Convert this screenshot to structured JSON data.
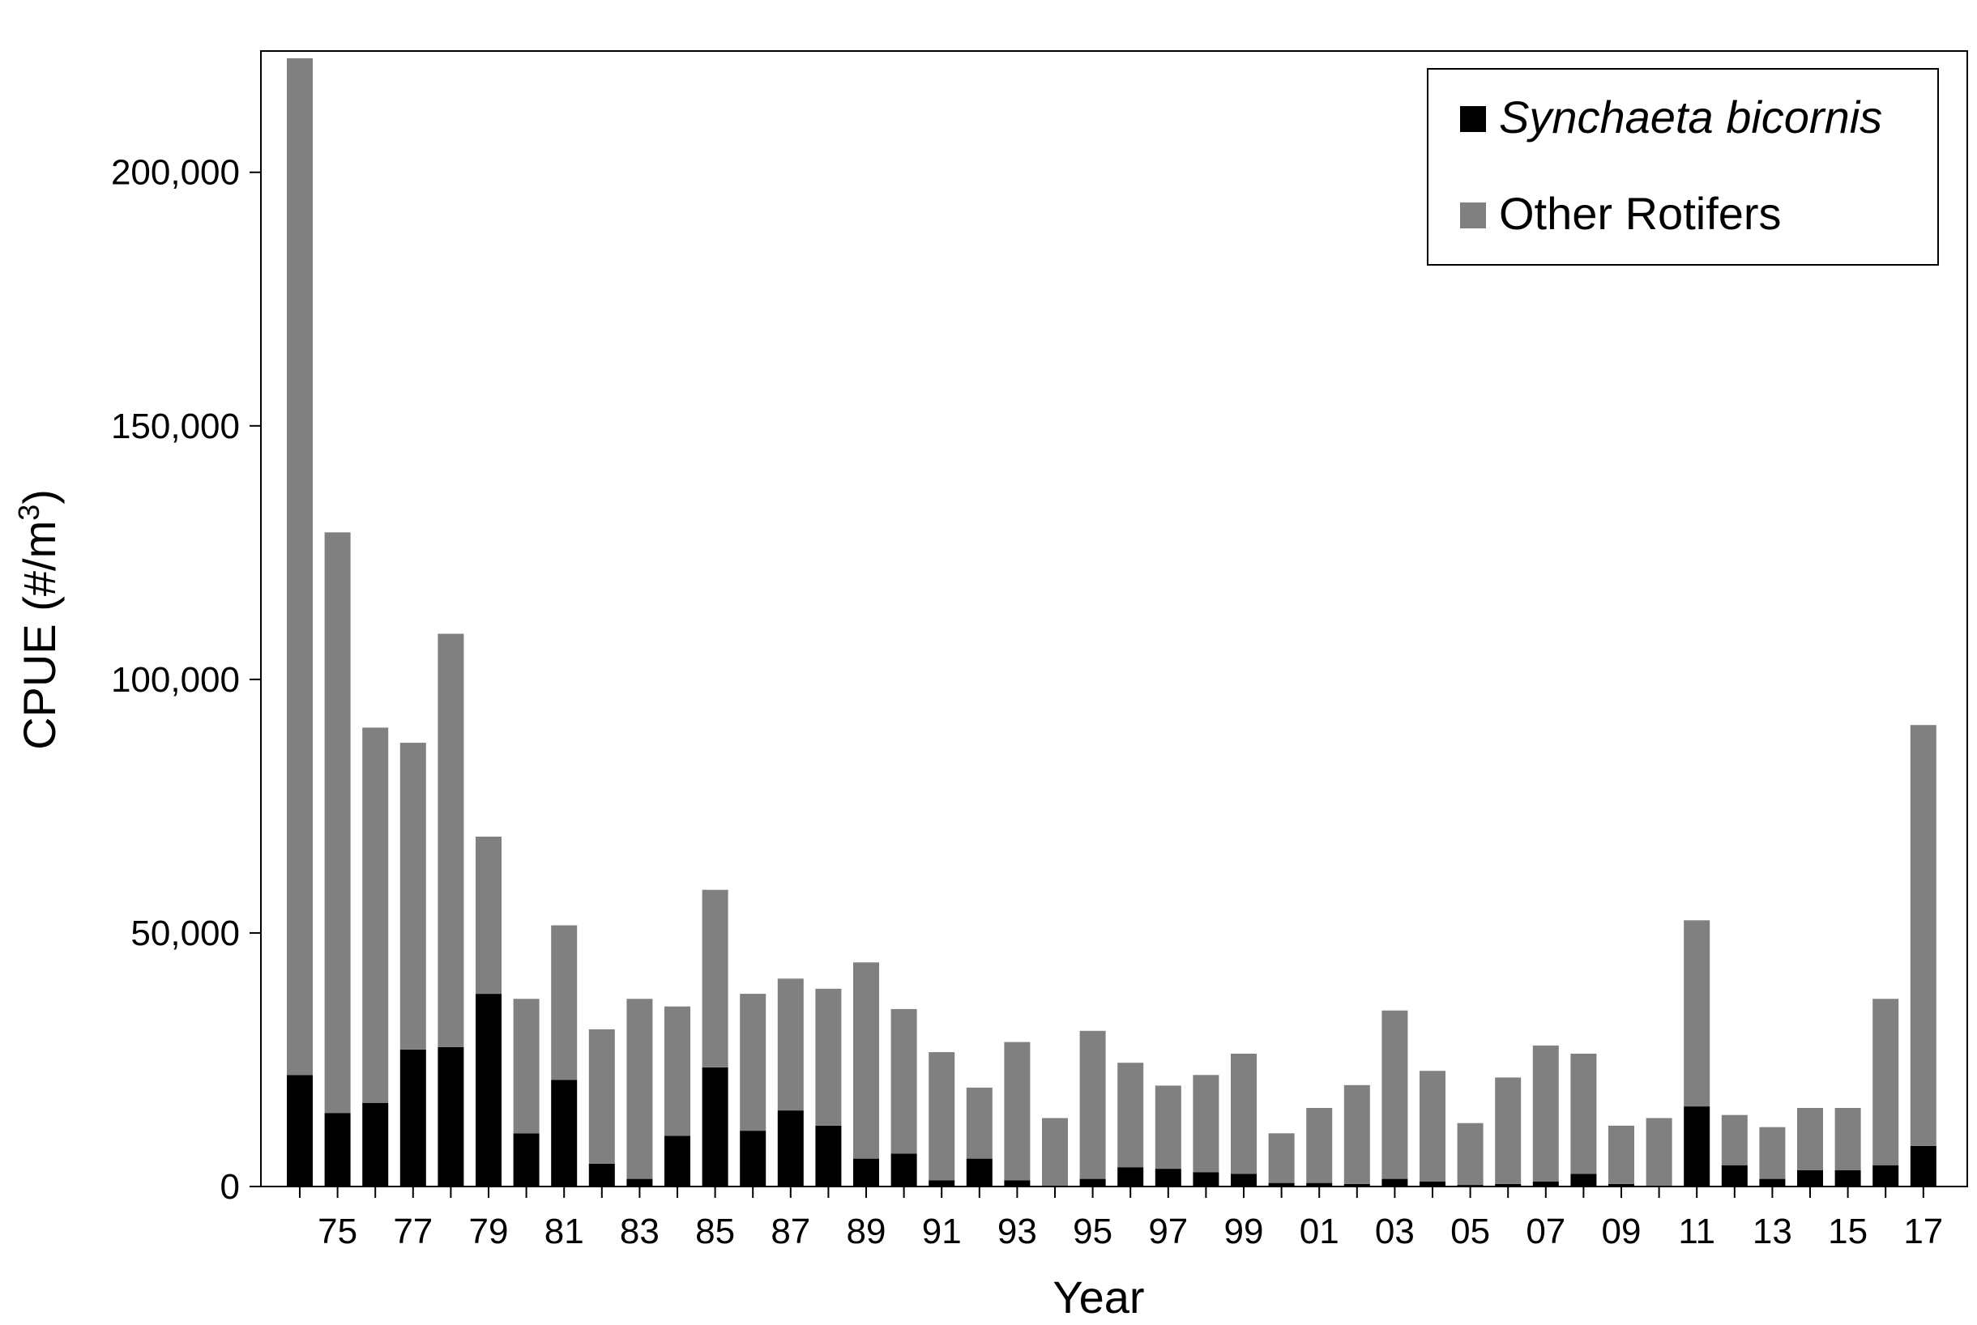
{
  "chart_data": {
    "type": "bar",
    "stacked": true,
    "xlabel": "Year",
    "ylabel_main": "CPUE (#/m",
    "ylabel_sup": "3",
    "ylabel_tail": ")",
    "ylim": [
      0,
      222000
    ],
    "y_ticks": [
      0,
      50000,
      100000,
      150000,
      200000
    ],
    "y_tick_labels": [
      "0",
      "50,000",
      "100,000",
      "150,000",
      "200,000"
    ],
    "categories": [
      "74",
      "75",
      "76",
      "77",
      "78",
      "79",
      "80",
      "81",
      "82",
      "83",
      "84",
      "85",
      "86",
      "87",
      "88",
      "89",
      "90",
      "91",
      "92",
      "93",
      "94",
      "95",
      "96",
      "97",
      "98",
      "99",
      "00",
      "01",
      "02",
      "03",
      "04",
      "05",
      "06",
      "07",
      "08",
      "09",
      "10",
      "11",
      "12",
      "13",
      "14",
      "15",
      "16",
      "17"
    ],
    "x_tick_labels_shown": [
      "75",
      "77",
      "79",
      "81",
      "83",
      "85",
      "87",
      "89",
      "91",
      "93",
      "95",
      "97",
      "99",
      "01",
      "03",
      "05",
      "07",
      "09",
      "11",
      "13",
      "15",
      "17"
    ],
    "series": [
      {
        "name": "Synchaeta bicornis",
        "color": "#000000",
        "values": [
          22000,
          14500,
          16500,
          27000,
          27500,
          38000,
          10500,
          21000,
          4500,
          1500,
          10000,
          23500,
          11000,
          15000,
          12000,
          5500,
          6500,
          1200,
          5500,
          1200,
          0,
          1500,
          3800,
          3500,
          2800,
          2500,
          700,
          700,
          500,
          1500,
          1000,
          300,
          500,
          1000,
          2500,
          500,
          0,
          15800,
          4200,
          1500,
          3200,
          3200,
          4200,
          8000
        ]
      },
      {
        "name": "Other Rotifers",
        "color": "#808080",
        "values": [
          200500,
          114500,
          74000,
          60500,
          81500,
          31000,
          26500,
          30500,
          26500,
          35500,
          25500,
          35000,
          27000,
          26000,
          27000,
          38700,
          28500,
          25300,
          14000,
          27300,
          13500,
          29200,
          20600,
          16400,
          19200,
          23700,
          9800,
          14800,
          19500,
          33200,
          21800,
          12200,
          21000,
          26800,
          23700,
          11500,
          13500,
          36700,
          9900,
          10200,
          12300,
          12300,
          32800,
          83000
        ]
      }
    ],
    "legend_position": "top-right",
    "grid": false
  }
}
